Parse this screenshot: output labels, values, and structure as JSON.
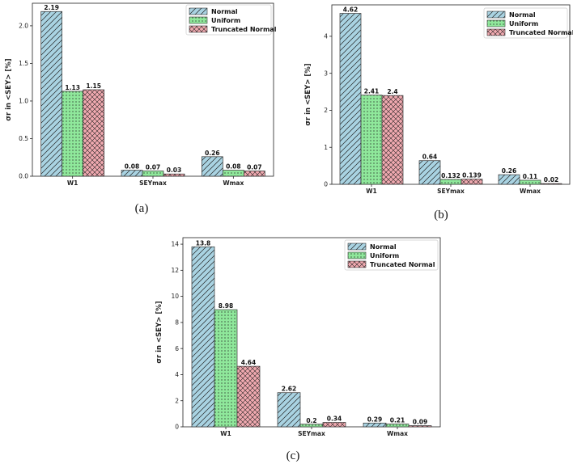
{
  "chart_data": [
    {
      "type": "bar",
      "panel": "(a)",
      "ylabel": "σr in <SEY> [%]",
      "categories": [
        "W1",
        "SEYmax",
        "Wmax"
      ],
      "ylim": [
        0,
        2.3
      ],
      "yticks": [
        0.0,
        0.5,
        1.0,
        1.5,
        2.0
      ],
      "tick_labels": [
        "0.0",
        "0.5",
        "1.0",
        "1.5",
        "2.0"
      ],
      "legend_position": "top-right",
      "series": [
        {
          "name": "Normal",
          "values": [
            2.19,
            0.08,
            0.26
          ],
          "labels": [
            "2.19",
            "0.08",
            "0.26"
          ]
        },
        {
          "name": "Uniform",
          "values": [
            1.13,
            0.07,
            0.08
          ],
          "labels": [
            "1.13",
            "0.07",
            "0.08"
          ]
        },
        {
          "name": "Truncated Normal",
          "values": [
            1.15,
            0.03,
            0.07
          ],
          "labels": [
            "1.15",
            "0.03",
            "0.07"
          ]
        }
      ]
    },
    {
      "type": "bar",
      "panel": "(b)",
      "ylabel": "σr in <SEY> [%]",
      "categories": [
        "W1",
        "SEYmax",
        "Wmax"
      ],
      "ylim": [
        0,
        4.85
      ],
      "yticks": [
        0,
        1,
        2,
        3,
        4
      ],
      "tick_labels": [
        "0",
        "1",
        "2",
        "3",
        "4"
      ],
      "legend_position": "top-right",
      "series": [
        {
          "name": "Normal",
          "values": [
            4.62,
            0.64,
            0.26
          ],
          "labels": [
            "4.62",
            "0.64",
            "0.26"
          ]
        },
        {
          "name": "Uniform",
          "values": [
            2.41,
            0.132,
            0.11
          ],
          "labels": [
            "2.41",
            "0.132",
            "0.11"
          ]
        },
        {
          "name": "Truncated Normal",
          "values": [
            2.4,
            0.139,
            0.02
          ],
          "labels": [
            "2.4",
            "0.139",
            "0.02"
          ]
        }
      ]
    },
    {
      "type": "bar",
      "panel": "(c)",
      "ylabel": "σr in <SEY> [%]",
      "categories": [
        "W1",
        "SEYmax",
        "Wmax"
      ],
      "ylim": [
        0,
        14.5
      ],
      "yticks": [
        0,
        2,
        4,
        6,
        8,
        10,
        12,
        14
      ],
      "tick_labels": [
        "0",
        "2",
        "4",
        "6",
        "8",
        "10",
        "12",
        "14"
      ],
      "legend_position": "top-right",
      "series": [
        {
          "name": "Normal",
          "values": [
            13.8,
            2.62,
            0.29
          ],
          "labels": [
            "13.8",
            "2.62",
            "0.29"
          ]
        },
        {
          "name": "Uniform",
          "values": [
            8.98,
            0.2,
            0.21
          ],
          "labels": [
            "8.98",
            "0.2",
            "0.21"
          ]
        },
        {
          "name": "Truncated Normal",
          "values": [
            4.64,
            0.34,
            0.09
          ],
          "labels": [
            "4.64",
            "0.34",
            "0.09"
          ]
        }
      ]
    }
  ],
  "colors": {
    "normal": "#a9d3e2",
    "uniform": "#8fe89b",
    "truncated_normal": "#f0a9b0",
    "edge": "#222222"
  }
}
